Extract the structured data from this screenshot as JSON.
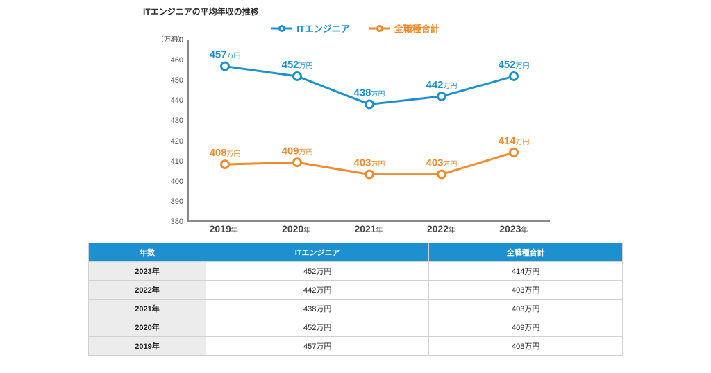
{
  "title": "ITエンジニアの平均年収の推移",
  "chart": {
    "type": "line",
    "y_unit_label": "（万円）",
    "ylim": [
      380,
      470
    ],
    "ytick_step": 10,
    "x_categories": [
      "2019",
      "2020",
      "2021",
      "2022",
      "2023"
    ],
    "x_suffix": "年",
    "point_unit": "万円",
    "background_color": "#ffffff",
    "axis_color": "#888888",
    "tick_font_color": "#555555",
    "tick_fontsize": 11,
    "xlabel_fontsize": 14,
    "line_width": 3,
    "marker_radius": 5.5,
    "series": [
      {
        "key": "it",
        "label": "ITエンジニア",
        "color": "#1d91d0",
        "values": [
          457,
          452,
          438,
          442,
          452
        ]
      },
      {
        "key": "all",
        "label": "全職種合計",
        "color": "#f08a2a",
        "values": [
          408,
          409,
          403,
          403,
          414
        ]
      }
    ]
  },
  "table": {
    "header_bg": "#1d91d0",
    "header_fg": "#ffffff",
    "row_label_bg": "#ececec",
    "border_color": "#d0d0d0",
    "cell_unit": "万円",
    "columns": [
      "年数",
      "ITエンジニア",
      "全職種合計"
    ],
    "rows": [
      [
        "2023年",
        452,
        414
      ],
      [
        "2022年",
        442,
        403
      ],
      [
        "2021年",
        438,
        403
      ],
      [
        "2020年",
        452,
        409
      ],
      [
        "2019年",
        457,
        408
      ]
    ]
  }
}
